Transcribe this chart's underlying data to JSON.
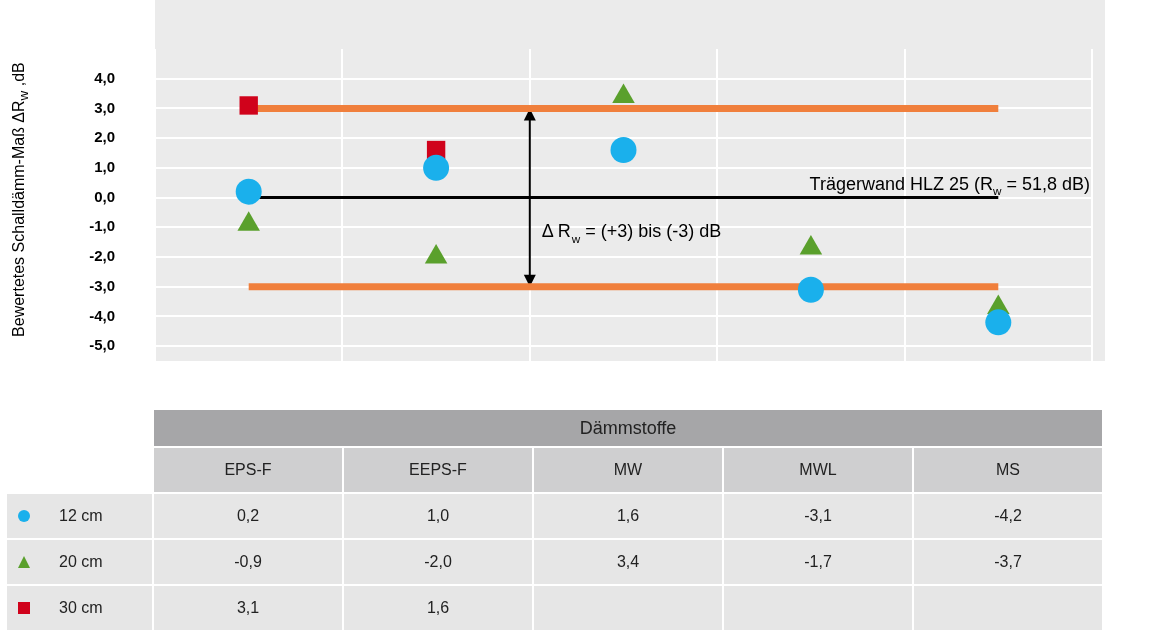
{
  "chart_data": {
    "type": "scatter",
    "xlabel": "Dämmstoffe",
    "ylabel": "Bewertetes Schalldämm-Maß ΔR$_{w}$ ,dB",
    "categories": [
      "EPS-F",
      "EEPS-F",
      "MW",
      "MWL",
      "MS"
    ],
    "series": [
      {
        "name": "12 cm",
        "color": "#1ab0ec",
        "marker": "circle",
        "values": [
          0.2,
          1.0,
          1.6,
          -3.1,
          -4.2
        ],
        "value_labels": [
          "0,2",
          "1,0",
          "1,6",
          "-3,1",
          "-4,2"
        ]
      },
      {
        "name": "20 cm",
        "color": "#5aa02c",
        "marker": "triangle",
        "values": [
          -0.9,
          -2.0,
          3.4,
          -1.7,
          -3.7
        ],
        "value_labels": [
          "-0,9",
          "-2,0",
          "3,4",
          "-1,7",
          "-3,7"
        ]
      },
      {
        "name": "30 cm",
        "color": "#d0021b",
        "marker": "square",
        "values": [
          3.1,
          1.6,
          null,
          null,
          null
        ],
        "value_labels": [
          "3,1",
          "1,6",
          null,
          null,
          null
        ]
      }
    ],
    "ylim": [
      -5.5,
      5
    ],
    "yticks": [
      {
        "value": -5,
        "label": "-5,0"
      },
      {
        "value": -4,
        "label": "-4,0"
      },
      {
        "value": -3,
        "label": "-3,0"
      },
      {
        "value": -2,
        "label": "-2,0"
      },
      {
        "value": -1,
        "label": "-1,0"
      },
      {
        "value": 0,
        "label": "0,0"
      },
      {
        "value": 1,
        "label": "1,0"
      },
      {
        "value": 2,
        "label": "2,0"
      },
      {
        "value": 3,
        "label": "3,0"
      },
      {
        "value": 4,
        "label": "4,0"
      }
    ],
    "ref_lines": [
      {
        "axis": "y",
        "value": 3,
        "color": "#f07f3c"
      },
      {
        "axis": "y",
        "value": -3,
        "color": "#f07f3c"
      },
      {
        "axis": "y",
        "value": 0,
        "color": "#000000"
      }
    ],
    "annotations": [
      {
        "text": "Trägerwand HLZ 25 (R$_{w}$ = 51,8 dB)",
        "y": 0
      },
      "Δ R$_{w}$ = (+3) bis (-3) dB"
    ],
    "grid": true,
    "legend": "bottom left"
  }
}
